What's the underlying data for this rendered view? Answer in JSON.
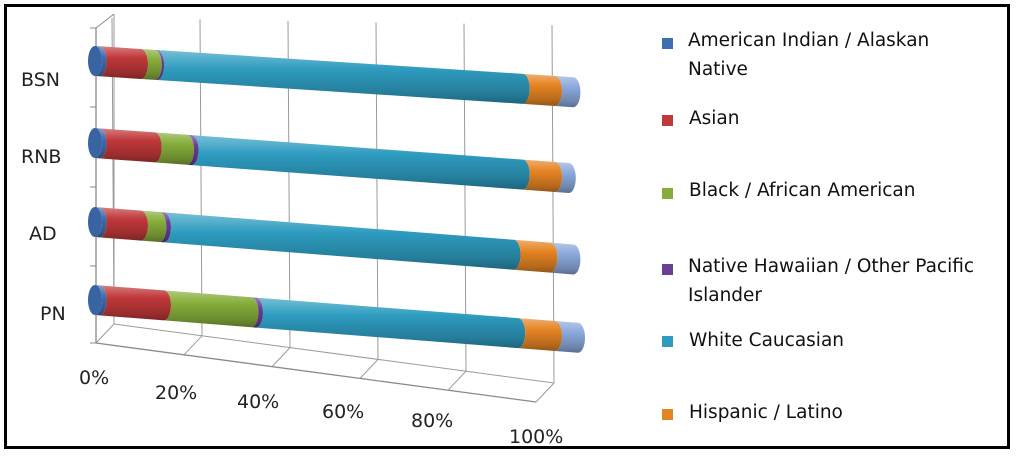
{
  "chart_data": {
    "type": "bar",
    "orientation": "horizontal",
    "stacked": "100%",
    "style": "3d-cylinder",
    "categories": [
      "BSN",
      "RNB",
      "AD",
      "PN"
    ],
    "series": [
      {
        "name": "American Indian / Alaskan Native",
        "color": "#3f6fb3",
        "values": [
          1,
          1,
          1,
          1
        ]
      },
      {
        "name": "Asian",
        "color": "#c0383a",
        "values": [
          9,
          12,
          9,
          14
        ]
      },
      {
        "name": "Black / African American",
        "color": "#86ad3a",
        "values": [
          3,
          7,
          4,
          19
        ]
      },
      {
        "name": "Native Hawaiian / Other Pacific Islander",
        "color": "#6a3d97",
        "values": [
          0.5,
          1,
          1,
          1
        ]
      },
      {
        "name": "White Caucasian",
        "color": "#2e9cc0",
        "values": [
          79.5,
          72,
          76,
          57
        ]
      },
      {
        "name": "Hispanic / Latino",
        "color": "#e58423",
        "values": [
          7,
          7,
          8,
          8
        ]
      },
      {
        "name": "",
        "color": "#8ba9dc",
        "values": [
          4,
          3,
          5,
          5
        ]
      }
    ],
    "x_ticks": [
      "0%",
      "20%",
      "40%",
      "60%",
      "80%",
      "100%"
    ],
    "xlim": [
      0,
      100
    ],
    "grid": true,
    "legend_position": "right"
  }
}
